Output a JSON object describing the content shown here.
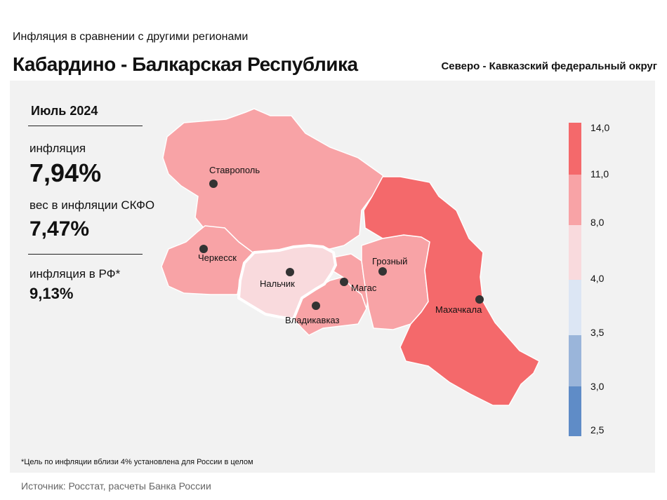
{
  "header": {
    "subtitle": "Инфляция в сравнении с другими регионами",
    "region": "Кабардино - Балкарская Республика",
    "district": "Северо - Кавказский федеральный округ"
  },
  "stats": {
    "month": "Июль 2024",
    "inflation_label": "инфляция",
    "inflation_value": "7,94%",
    "weight_label": "вес в инфляции СКФО",
    "weight_value": "7,47%",
    "rf_label": "инфляция в РФ*",
    "rf_value": "9,13%"
  },
  "cities": {
    "stavropol": "Ставрополь",
    "cherkessk": "Черкесск",
    "nalchik": "Нальчик",
    "vladikavkaz": "Владикавказ",
    "magas": "Магас",
    "grozny": "Грозный",
    "makhachkala": "Махачкала"
  },
  "legend": {
    "ticks": [
      "14,0",
      "11,0",
      "8,0",
      "4,0",
      "3,5",
      "3,0",
      "2,5"
    ],
    "colors": [
      "#f4696b",
      "#f8a3a6",
      "#f9dadd",
      "#dce6f4",
      "#9ab5da",
      "#5f8cc7"
    ]
  },
  "colors": {
    "high": "#f4696b",
    "mid": "#f8a3a6",
    "low": "#f9dadd"
  },
  "footnote": "*Цель по инфляции вблизи 4% установлена для России в целом",
  "source": "Источник: Росстат, расчеты Банка России"
}
